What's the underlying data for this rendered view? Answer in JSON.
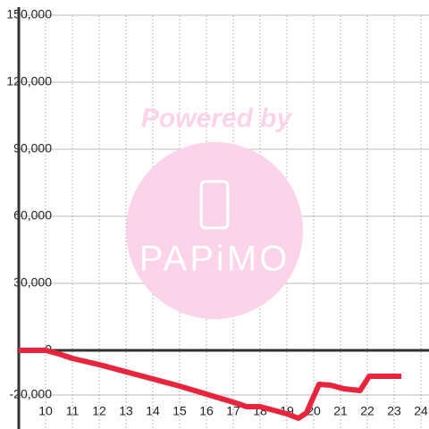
{
  "chart_data": {
    "type": "line",
    "watermark": {
      "line1": "Powered by",
      "line2": "PAPiMO"
    },
    "x": [
      9,
      10,
      10.5,
      11,
      12,
      13,
      14,
      15,
      16,
      17,
      17.5,
      18,
      19,
      19.43,
      19.73,
      20.2,
      20.63,
      21.13,
      21.73,
      22.07,
      23.27
    ],
    "series": [
      {
        "color": "#e8253c",
        "values": [
          0,
          0,
          -1600,
          -3600,
          -6400,
          -9600,
          -12800,
          -16000,
          -19600,
          -23200,
          -25200,
          -25200,
          -28400,
          -30400,
          -28000,
          -15200,
          -15600,
          -17200,
          -18000,
          -11600,
          -11600
        ]
      }
    ],
    "xlim": [
      9,
      24.3
    ],
    "xticks": [
      10,
      11,
      12,
      13,
      14,
      15,
      16,
      17,
      18,
      19,
      20,
      21,
      22,
      23,
      24
    ],
    "ylim": [
      -35200,
      150000
    ],
    "yticks": [
      {
        "value": -20000,
        "label": "-20,000"
      },
      0,
      {
        "value": 30000,
        "label": "30,000"
      },
      {
        "value": 60000,
        "label": "60,000"
      },
      {
        "value": 90000,
        "label": "90,000"
      },
      {
        "value": 120000,
        "label": "120,000"
      },
      {
        "value": 150000,
        "label": "150,000"
      }
    ],
    "grid": true
  }
}
